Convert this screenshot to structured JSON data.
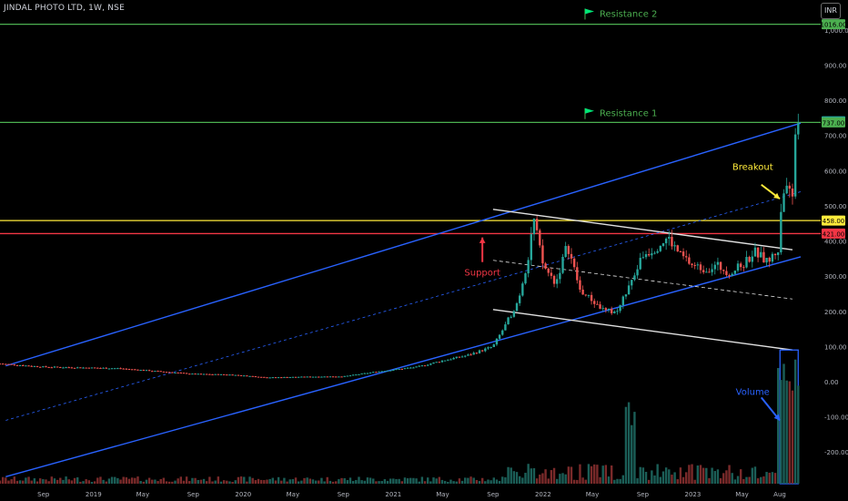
{
  "header": {
    "title": "JINDAL PHOTO LTD, 1W, NSE",
    "currency": "INR"
  },
  "chart_data": {
    "type": "candlestick",
    "title": "JINDAL PHOTO LTD, 1W, NSE",
    "y_axis": {
      "ticks": [
        -200,
        -100,
        0,
        100,
        200,
        300,
        400,
        500,
        600,
        700,
        800,
        900,
        1000
      ],
      "tick_labels": [
        "-200.00",
        "-100.00",
        "0.00",
        "100.00",
        "200.00",
        "300.00",
        "400.00",
        "500.00",
        "600.00",
        "700.00",
        "800.00",
        "900.00",
        "1,000.00"
      ],
      "ylim": [
        -290,
        1085
      ]
    },
    "x_axis": {
      "ticks": [
        "Sep",
        "2019",
        "May",
        "Sep",
        "2020",
        "May",
        "Sep",
        "2021",
        "May",
        "Sep",
        "2022",
        "May",
        "Sep",
        "2023",
        "May",
        "Aug"
      ],
      "tick_dates": [
        "2018-09",
        "2019-01",
        "2019-05",
        "2019-09",
        "2020-01",
        "2020-05",
        "2020-09",
        "2021-01",
        "2021-05",
        "2021-09",
        "2022-01",
        "2022-05",
        "2022-09",
        "2023-01",
        "2023-05",
        "2023-08"
      ]
    },
    "price_labels": [
      {
        "value": 1016.0,
        "text": "1016.00",
        "color": "#4caf50"
      },
      {
        "value": 740.2,
        "text": "740.20",
        "color": "#26a69a"
      },
      {
        "value": 737.0,
        "text": "737.00",
        "color": "#4caf50"
      },
      {
        "value": 458.0,
        "text": "458.00",
        "color": "#ffeb3b"
      },
      {
        "value": 421.0,
        "text": "421.00",
        "color": "#f23645"
      }
    ],
    "horizontal_levels": [
      {
        "value": 1016,
        "color": "#4caf50"
      },
      {
        "value": 737,
        "color": "#4caf50"
      },
      {
        "value": 458,
        "color": "#ffeb3b"
      },
      {
        "value": 421,
        "color": "#f23645"
      }
    ],
    "annotations": [
      {
        "text": "Resistance 2",
        "date": "2022-05-15",
        "value": 1045,
        "color": "#4caf50",
        "flag": true
      },
      {
        "text": "Resistance 1",
        "date": "2022-05-15",
        "value": 762,
        "color": "#4caf50",
        "flag": true
      },
      {
        "text": "Breakout",
        "date": "2023-06-10",
        "value": 610,
        "color": "#ffeb3b"
      },
      {
        "text": "Support",
        "date": "2021-08-20",
        "value": 310,
        "color": "#f23645"
      },
      {
        "text": "Volume",
        "date": "2023-06-10",
        "value": -30,
        "color": "#2962ff"
      }
    ],
    "series": [
      {
        "name": "",
        "points": [
          [
            "2018-06",
            50
          ],
          [
            "2018-09",
            42
          ],
          [
            "2018-12",
            40
          ],
          [
            "2019-03",
            38
          ],
          [
            "2019-06",
            30
          ],
          [
            "2019-09",
            22
          ],
          [
            "2019-12",
            20
          ],
          [
            "2020-03",
            12
          ],
          [
            "2020-06",
            14
          ],
          [
            "2020-09",
            15
          ],
          [
            "2020-12",
            30
          ],
          [
            "2021-03",
            42
          ],
          [
            "2021-05",
            60
          ],
          [
            "2021-07",
            75
          ],
          [
            "2021-09",
            100
          ],
          [
            "2021-10",
            160
          ],
          [
            "2021-11",
            230
          ],
          [
            "2021-12",
            380
          ],
          [
            "2021-12-20",
            480
          ],
          [
            "2022-01",
            330
          ],
          [
            "2022-02",
            280
          ],
          [
            "2022-03",
            390
          ],
          [
            "2022-04",
            260
          ],
          [
            "2022-05",
            230
          ],
          [
            "2022-06",
            200
          ],
          [
            "2022-07",
            200
          ],
          [
            "2022-08",
            280
          ],
          [
            "2022-09",
            360
          ],
          [
            "2022-10",
            380
          ],
          [
            "2022-11",
            410
          ],
          [
            "2022-12",
            360
          ],
          [
            "2023-01",
            330
          ],
          [
            "2023-02",
            320
          ],
          [
            "2023-03",
            330
          ],
          [
            "2023-04",
            310
          ],
          [
            "2023-05",
            330
          ],
          [
            "2023-06",
            370
          ],
          [
            "2023-07",
            340
          ],
          [
            "2023-08",
            380
          ],
          [
            "2023-08-20",
            560
          ],
          [
            "2023-09",
            520
          ],
          [
            "2023-09-15",
            640
          ],
          [
            "2023-09-25",
            740
          ]
        ]
      }
    ]
  }
}
